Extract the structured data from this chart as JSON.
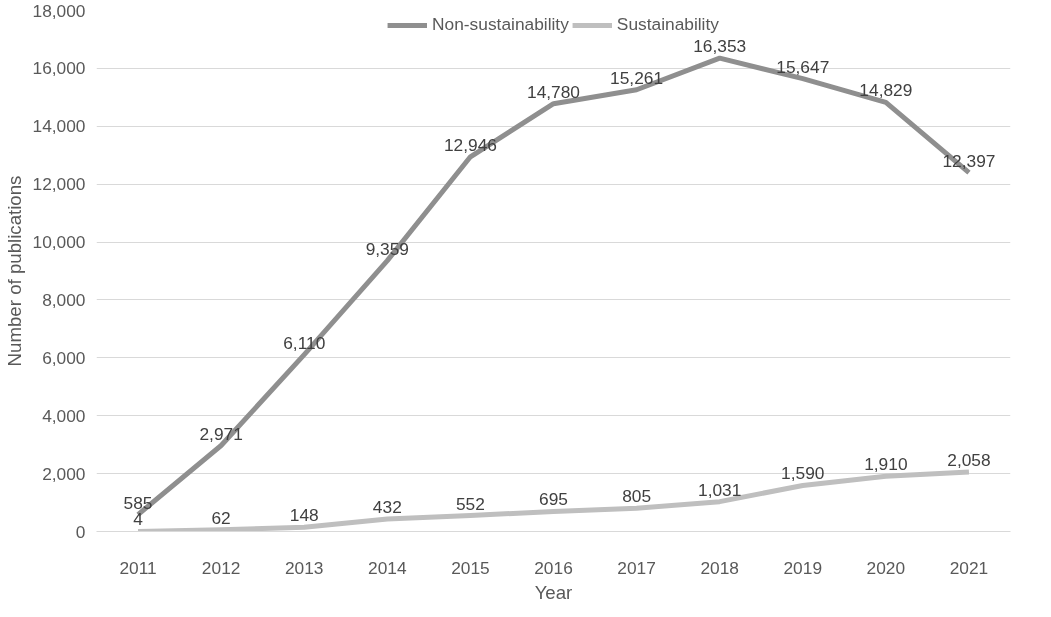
{
  "chart_data": {
    "type": "line",
    "xlabel": "Year",
    "ylabel": "Number of publications",
    "categories": [
      "2011",
      "2012",
      "2013",
      "2014",
      "2015",
      "2016",
      "2017",
      "2018",
      "2019",
      "2020",
      "2021"
    ],
    "series": [
      {
        "name": "Non-sustainability",
        "color": "#8f8f8f",
        "values": [
          585,
          2971,
          6110,
          9359,
          12946,
          14780,
          15261,
          16353,
          15647,
          14829,
          12397
        ],
        "value_labels": [
          "585",
          "2,971",
          "6,110",
          "9,359",
          "12,946",
          "14,780",
          "15,261",
          "16,353",
          "15,647",
          "14,829",
          "12,397"
        ]
      },
      {
        "name": "Sustainability",
        "color": "#bfbfbf",
        "values": [
          4,
          62,
          148,
          432,
          552,
          695,
          805,
          1031,
          1590,
          1910,
          2058
        ],
        "value_labels": [
          "4",
          "62",
          "148",
          "432",
          "552",
          "695",
          "805",
          "1,031",
          "1,590",
          "1,910",
          "2,058"
        ]
      }
    ],
    "ylim": [
      0,
      18000
    ],
    "yticks": [
      0,
      {
        "value": 2000,
        "label": "2,000"
      },
      {
        "value": 4000,
        "label": "4,000"
      },
      {
        "value": 6000,
        "label": "6,000"
      },
      {
        "value": 8000,
        "label": "8,000"
      },
      {
        "value": 10000,
        "label": "10,000"
      },
      {
        "value": 12000,
        "label": "12,000"
      },
      {
        "value": 14000,
        "label": "14,000"
      },
      {
        "value": 16000,
        "label": "16,000"
      },
      {
        "value": 18000,
        "label": "18,000"
      }
    ],
    "grid": "y",
    "legend": "top",
    "marker": "none",
    "line_style": "solid"
  }
}
